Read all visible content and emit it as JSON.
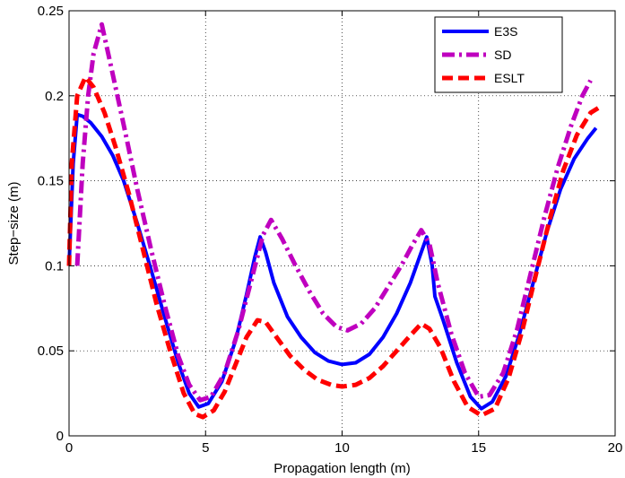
{
  "chart_data": {
    "type": "line",
    "title": "",
    "xlabel": "Propagation length (m)",
    "ylabel": "Step−size (m)",
    "xlim": [
      0,
      20
    ],
    "ylim": [
      0,
      0.25
    ],
    "xticks": [
      0,
      5,
      10,
      15,
      20
    ],
    "yticks": [
      0,
      0.05,
      0.1,
      0.15,
      0.2,
      0.25
    ],
    "xtick_labels": [
      "0",
      "5",
      "10",
      "15",
      "20"
    ],
    "ytick_labels": [
      "0",
      "0.05",
      "0.1",
      "0.15",
      "0.2",
      "0.25"
    ],
    "grid": true,
    "legend_position": "top-right",
    "series": [
      {
        "name": "E3S",
        "color": "#0000ff",
        "dash": "solid",
        "points": [
          [
            0.0,
            0.1
          ],
          [
            0.15,
            0.16
          ],
          [
            0.3,
            0.189
          ],
          [
            0.5,
            0.188
          ],
          [
            0.8,
            0.184
          ],
          [
            1.2,
            0.176
          ],
          [
            1.6,
            0.165
          ],
          [
            2.0,
            0.15
          ],
          [
            2.5,
            0.125
          ],
          [
            3.0,
            0.098
          ],
          [
            3.5,
            0.07
          ],
          [
            4.0,
            0.043
          ],
          [
            4.4,
            0.025
          ],
          [
            4.75,
            0.017
          ],
          [
            5.1,
            0.019
          ],
          [
            5.6,
            0.032
          ],
          [
            6.1,
            0.056
          ],
          [
            6.5,
            0.083
          ],
          [
            6.8,
            0.105
          ],
          [
            7.0,
            0.117
          ],
          [
            7.2,
            0.108
          ],
          [
            7.5,
            0.09
          ],
          [
            8.0,
            0.07
          ],
          [
            8.5,
            0.058
          ],
          [
            9.0,
            0.049
          ],
          [
            9.5,
            0.044
          ],
          [
            10.0,
            0.042
          ],
          [
            10.5,
            0.043
          ],
          [
            11.0,
            0.048
          ],
          [
            11.5,
            0.058
          ],
          [
            12.0,
            0.072
          ],
          [
            12.5,
            0.09
          ],
          [
            12.9,
            0.108
          ],
          [
            13.1,
            0.117
          ],
          [
            13.3,
            0.1
          ],
          [
            13.4,
            0.082
          ],
          [
            13.7,
            0.068
          ],
          [
            14.2,
            0.043
          ],
          [
            14.7,
            0.023
          ],
          [
            15.1,
            0.016
          ],
          [
            15.5,
            0.02
          ],
          [
            16.0,
            0.035
          ],
          [
            16.5,
            0.06
          ],
          [
            17.0,
            0.09
          ],
          [
            17.5,
            0.12
          ],
          [
            18.0,
            0.145
          ],
          [
            18.5,
            0.163
          ],
          [
            19.0,
            0.175
          ],
          [
            19.3,
            0.181
          ]
        ]
      },
      {
        "name": "SD",
        "color": "#bf00bf",
        "dash": "dashdot",
        "points": [
          [
            0.3,
            0.1
          ],
          [
            0.5,
            0.16
          ],
          [
            0.7,
            0.2
          ],
          [
            0.9,
            0.225
          ],
          [
            1.2,
            0.242
          ],
          [
            1.5,
            0.22
          ],
          [
            2.0,
            0.183
          ],
          [
            2.5,
            0.145
          ],
          [
            3.0,
            0.11
          ],
          [
            3.5,
            0.077
          ],
          [
            4.0,
            0.047
          ],
          [
            4.4,
            0.03
          ],
          [
            4.8,
            0.021
          ],
          [
            5.2,
            0.023
          ],
          [
            5.7,
            0.037
          ],
          [
            6.2,
            0.062
          ],
          [
            6.7,
            0.093
          ],
          [
            7.1,
            0.118
          ],
          [
            7.4,
            0.127
          ],
          [
            7.8,
            0.116
          ],
          [
            8.3,
            0.1
          ],
          [
            8.8,
            0.085
          ],
          [
            9.3,
            0.072
          ],
          [
            9.8,
            0.064
          ],
          [
            10.2,
            0.062
          ],
          [
            10.7,
            0.066
          ],
          [
            11.2,
            0.075
          ],
          [
            11.7,
            0.088
          ],
          [
            12.2,
            0.101
          ],
          [
            12.6,
            0.113
          ],
          [
            12.9,
            0.121
          ],
          [
            13.2,
            0.113
          ],
          [
            13.5,
            0.09
          ],
          [
            14.0,
            0.06
          ],
          [
            14.5,
            0.037
          ],
          [
            15.0,
            0.023
          ],
          [
            15.4,
            0.024
          ],
          [
            15.9,
            0.037
          ],
          [
            16.4,
            0.062
          ],
          [
            16.9,
            0.095
          ],
          [
            17.4,
            0.128
          ],
          [
            17.9,
            0.158
          ],
          [
            18.4,
            0.183
          ],
          [
            18.8,
            0.2
          ],
          [
            19.1,
            0.209
          ]
        ]
      },
      {
        "name": "ESLT",
        "color": "#ff0000",
        "dash": "dashed",
        "points": [
          [
            0.0,
            0.1
          ],
          [
            0.1,
            0.16
          ],
          [
            0.3,
            0.2
          ],
          [
            0.6,
            0.211
          ],
          [
            0.9,
            0.205
          ],
          [
            1.3,
            0.19
          ],
          [
            1.7,
            0.17
          ],
          [
            2.2,
            0.142
          ],
          [
            2.7,
            0.11
          ],
          [
            3.2,
            0.078
          ],
          [
            3.7,
            0.05
          ],
          [
            4.2,
            0.025
          ],
          [
            4.6,
            0.013
          ],
          [
            4.9,
            0.011
          ],
          [
            5.3,
            0.015
          ],
          [
            5.7,
            0.026
          ],
          [
            6.1,
            0.042
          ],
          [
            6.5,
            0.058
          ],
          [
            6.9,
            0.068
          ],
          [
            7.2,
            0.067
          ],
          [
            7.6,
            0.058
          ],
          [
            8.1,
            0.047
          ],
          [
            8.6,
            0.039
          ],
          [
            9.1,
            0.033
          ],
          [
            9.6,
            0.03
          ],
          [
            10.0,
            0.029
          ],
          [
            10.5,
            0.03
          ],
          [
            11.0,
            0.034
          ],
          [
            11.5,
            0.041
          ],
          [
            12.0,
            0.05
          ],
          [
            12.5,
            0.059
          ],
          [
            12.9,
            0.066
          ],
          [
            13.2,
            0.063
          ],
          [
            13.6,
            0.052
          ],
          [
            14.1,
            0.032
          ],
          [
            14.6,
            0.017
          ],
          [
            15.1,
            0.012
          ],
          [
            15.6,
            0.016
          ],
          [
            16.1,
            0.034
          ],
          [
            16.6,
            0.062
          ],
          [
            17.1,
            0.095
          ],
          [
            17.6,
            0.127
          ],
          [
            18.1,
            0.156
          ],
          [
            18.6,
            0.177
          ],
          [
            19.1,
            0.19
          ],
          [
            19.4,
            0.193
          ]
        ]
      }
    ]
  }
}
